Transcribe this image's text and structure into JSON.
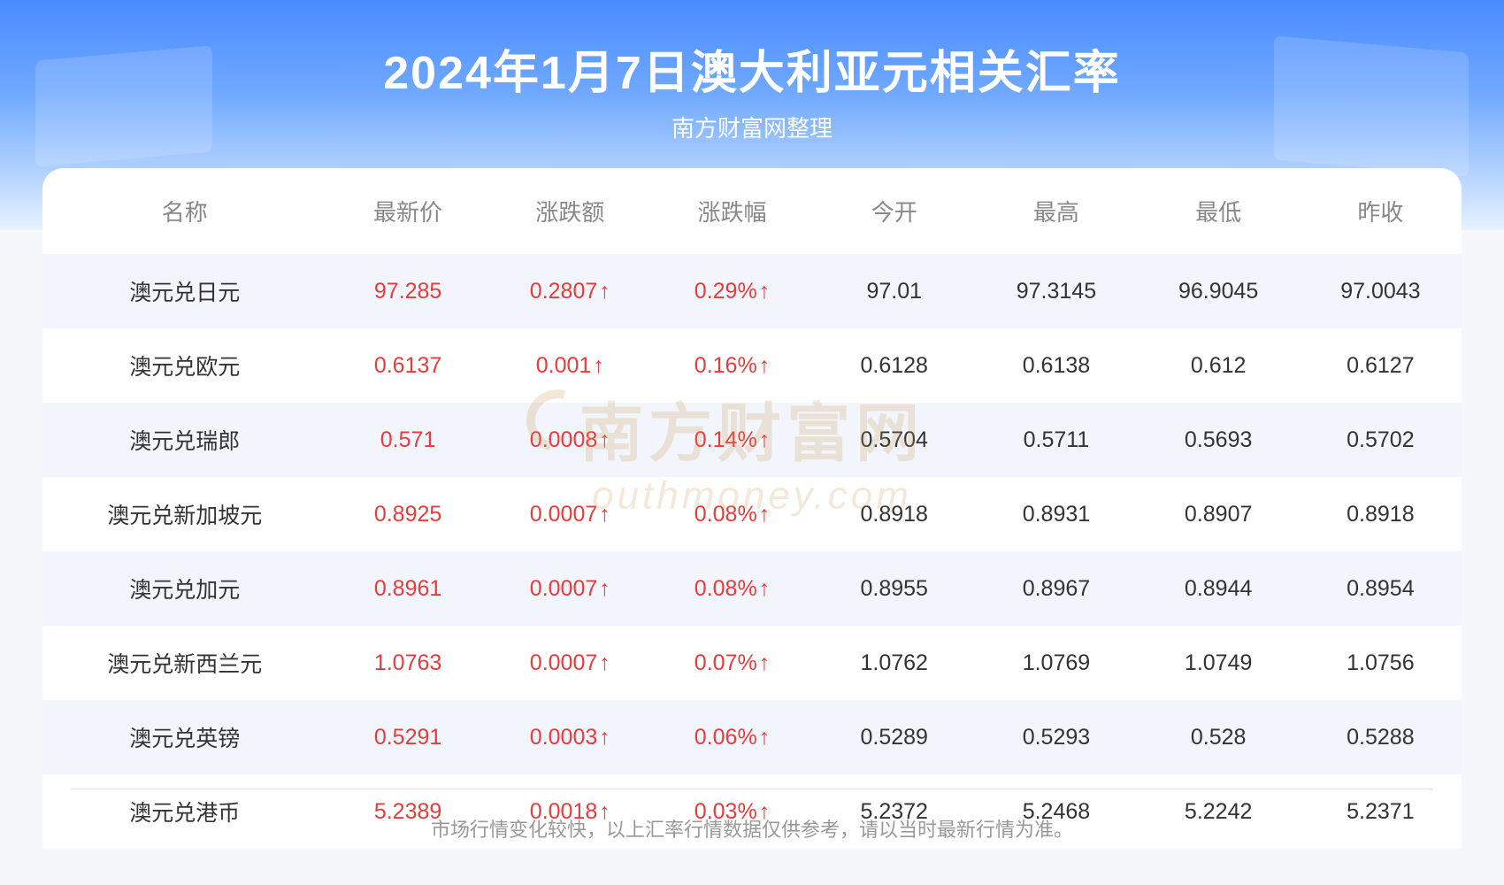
{
  "title": "2024年1月7日澳大利亚元相关汇率",
  "subtitle": "南方财富网整理",
  "footer": "市场行情变化较快，以上汇率行情数据仅供参考，请以当时最新行情为准。",
  "watermark": {
    "cn": "南方财富网",
    "en": "outhmoney.com"
  },
  "colors": {
    "up": "#e83c3c",
    "neutral": "#333333",
    "header_text": "#888888",
    "bg_odd": "#f2f5fb",
    "bg_even": "#ffffff",
    "header_grad_top": "#4a8cff",
    "header_grad_bottom": "#e8f2ff"
  },
  "fontsize": {
    "title": 52,
    "subtitle": 26,
    "th": 26,
    "td": 25,
    "footer": 22
  },
  "columns": [
    "名称",
    "最新价",
    "涨跌额",
    "涨跌幅",
    "今开",
    "最高",
    "最低",
    "昨收"
  ],
  "rows": [
    {
      "name": "澳元兑日元",
      "price": "97.285",
      "change": "0.2807",
      "pct": "0.29%",
      "open": "97.01",
      "high": "97.3145",
      "low": "96.9045",
      "prev": "97.0043",
      "dir": "up"
    },
    {
      "name": "澳元兑欧元",
      "price": "0.6137",
      "change": "0.001",
      "pct": "0.16%",
      "open": "0.6128",
      "high": "0.6138",
      "low": "0.612",
      "prev": "0.6127",
      "dir": "up"
    },
    {
      "name": "澳元兑瑞郎",
      "price": "0.571",
      "change": "0.0008",
      "pct": "0.14%",
      "open": "0.5704",
      "high": "0.5711",
      "low": "0.5693",
      "prev": "0.5702",
      "dir": "up"
    },
    {
      "name": "澳元兑新加坡元",
      "price": "0.8925",
      "change": "0.0007",
      "pct": "0.08%",
      "open": "0.8918",
      "high": "0.8931",
      "low": "0.8907",
      "prev": "0.8918",
      "dir": "up"
    },
    {
      "name": "澳元兑加元",
      "price": "0.8961",
      "change": "0.0007",
      "pct": "0.08%",
      "open": "0.8955",
      "high": "0.8967",
      "low": "0.8944",
      "prev": "0.8954",
      "dir": "up"
    },
    {
      "name": "澳元兑新西兰元",
      "price": "1.0763",
      "change": "0.0007",
      "pct": "0.07%",
      "open": "1.0762",
      "high": "1.0769",
      "low": "1.0749",
      "prev": "1.0756",
      "dir": "up"
    },
    {
      "name": "澳元兑英镑",
      "price": "0.5291",
      "change": "0.0003",
      "pct": "0.06%",
      "open": "0.5289",
      "high": "0.5293",
      "low": "0.528",
      "prev": "0.5288",
      "dir": "up"
    },
    {
      "name": "澳元兑港币",
      "price": "5.2389",
      "change": "0.0018",
      "pct": "0.03%",
      "open": "5.2372",
      "high": "5.2468",
      "low": "5.2242",
      "prev": "5.2371",
      "dir": "up"
    }
  ]
}
